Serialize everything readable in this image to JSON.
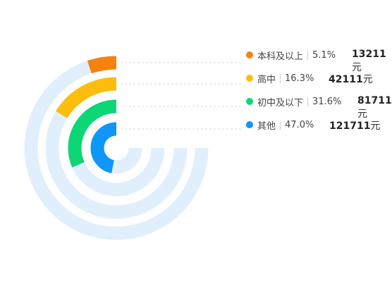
{
  "chart_data": {
    "type": "radial-bar",
    "series": [
      {
        "name": "本科及以上",
        "percent_label": "5.1%",
        "percent": 5.1,
        "amount": "13211",
        "color": "#f5820d"
      },
      {
        "name": "高中",
        "percent_label": "16.3%",
        "percent": 16.3,
        "amount": "42111",
        "color": "#fcbd0d"
      },
      {
        "name": "初中及以下",
        "percent_label": "31.6%",
        "percent": 31.6,
        "amount": "81711",
        "color": "#0dd676"
      },
      {
        "name": "其他",
        "percent_label": "47.0%",
        "percent": 47.0,
        "amount": "121711",
        "color": "#0e96f8"
      }
    ],
    "track_color": "#e1effd",
    "unit": "元"
  }
}
